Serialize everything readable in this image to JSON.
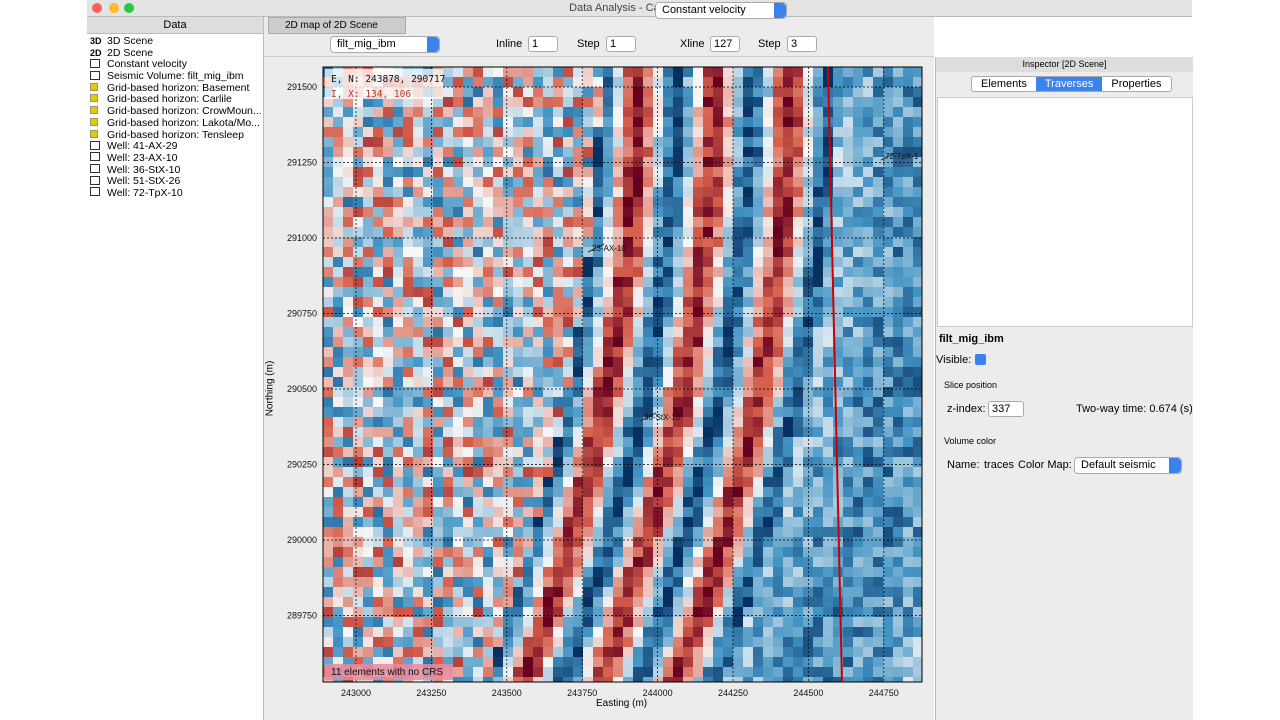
{
  "window": {
    "title": "Data Analysis - Canopy Data"
  },
  "data_panel": {
    "title": "Data",
    "items": [
      "3D Scene",
      "2D Scene",
      "Constant velocity",
      "Seismic Volume: filt_mig_ibm",
      "Grid-based horizon: Basement",
      "Grid-based horizon: Carlile",
      "Grid-based horizon: CrowMoun...",
      "Grid-based horizon: Lakota/Mo...",
      "Grid-based horizon: Tensleep",
      "Well: 41-AX-29",
      "Well: 23-AX-10",
      "Well: 36-StX-10",
      "Well: 51-StX-26",
      "Well: 72-TpX-10"
    ],
    "icons": [
      "3D",
      "2D"
    ]
  },
  "tab": "2D map of 2D Scene",
  "toolbar": {
    "volume": "filt_mig_ibm",
    "inline_label": "Inline",
    "inline": "1",
    "step_label": "Step",
    "inline_step": "1",
    "xline_label": "Xline",
    "xline": "127",
    "xline_step_label": "Step",
    "xline_step": "3",
    "velocity": "Constant velocity"
  },
  "map": {
    "cursor_en": "E, N: 243878, 290717",
    "cursor_ix": "I, X: 134, 106",
    "footer": "11 elements with no CRS",
    "xlabel": "Easting (m)",
    "ylabel": "Northing (m)",
    "xticks": [
      243000,
      243250,
      243500,
      243750,
      244000,
      244250,
      244500,
      244750
    ],
    "yticks": [
      291500,
      291250,
      291000,
      290750,
      290500,
      290250,
      290000,
      289750
    ],
    "wells": [
      "23-AX-10",
      "36-StX-10",
      "72-TpX-1"
    ]
  },
  "inspector": {
    "title": "Inspector [2D Scene]",
    "tabs": [
      "Elements",
      "Traverses",
      "Properties"
    ],
    "layer": "filt_mig_ibm",
    "visible": "Visible:",
    "slice_section": "Slice position",
    "zindex_label": "z-index:",
    "zindex": "337",
    "twt": "Two-way time: 0.674 (s)",
    "color_section": "Volume color",
    "name_label": "Name:",
    "name": "traces",
    "cmap_label": "Color Map:",
    "cmap": "Default seismic"
  }
}
